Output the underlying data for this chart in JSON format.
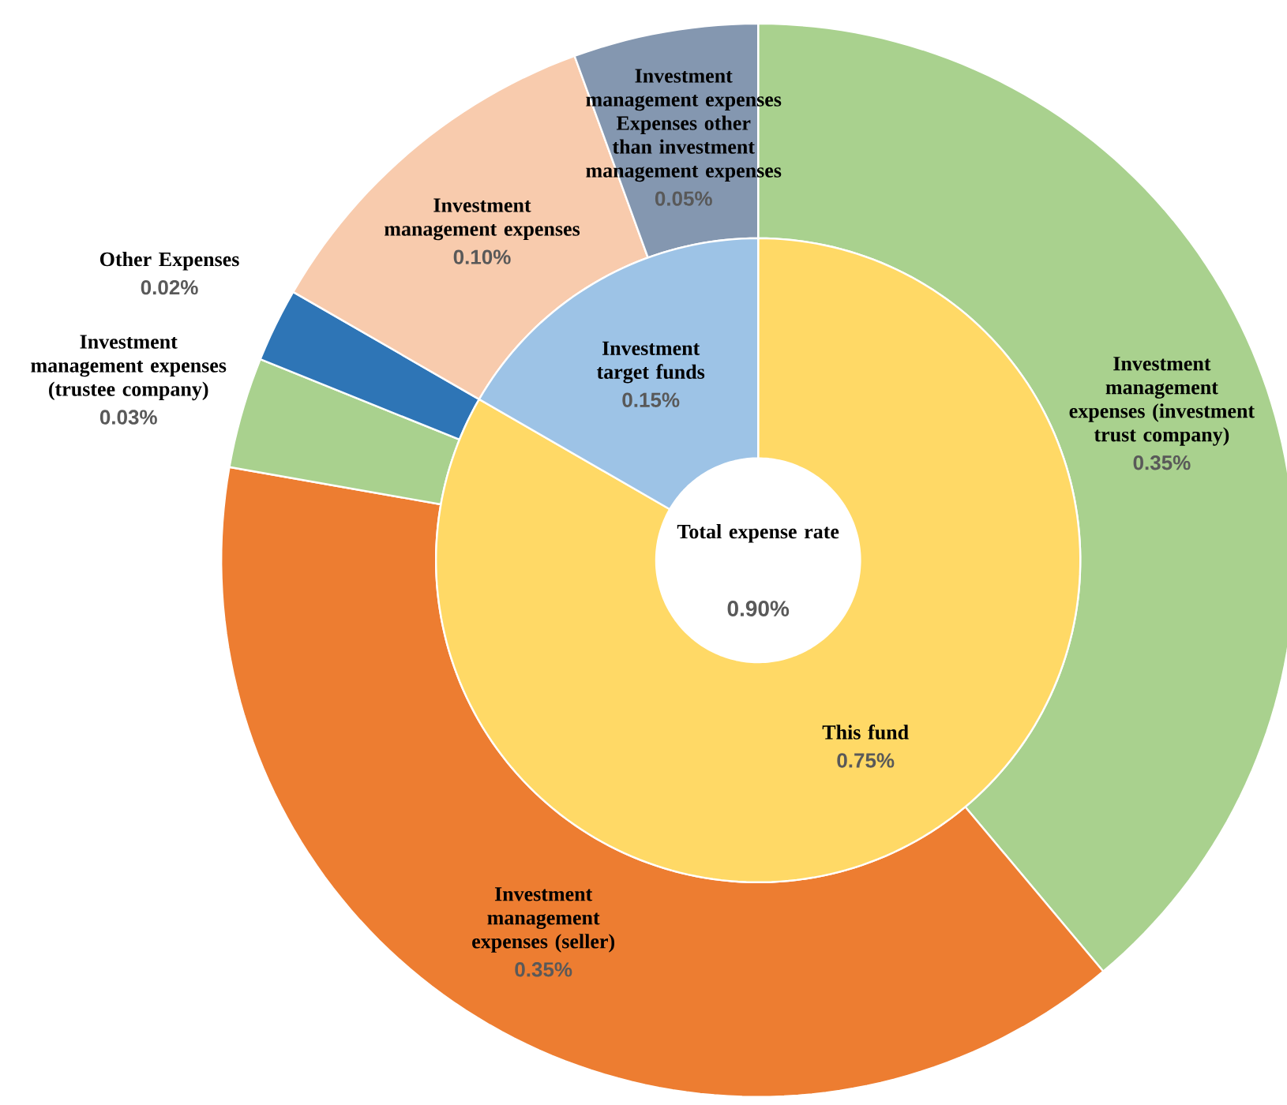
{
  "chart_data": [
    {
      "type": "donut",
      "title": "Total expense rate",
      "annotations": [
        "0.90%"
      ],
      "categories": [
        "This fund",
        "Investment target funds"
      ],
      "values": [
        0.75,
        0.15
      ],
      "colors": [
        "#ffd966",
        "#9dc3e6"
      ],
      "value_labels": [
        "0.75%",
        "0.15%"
      ]
    },
    {
      "type": "donut",
      "categories": [
        "Investment management expenses (investment trust company)",
        "Investment management expenses (seller)",
        "Investment management expenses (trustee company)",
        "Other Expenses",
        "Investment management expenses",
        "Investment management expenses Expenses other than investment management expenses"
      ],
      "values": [
        0.35,
        0.35,
        0.03,
        0.02,
        0.1,
        0.05
      ],
      "colors": [
        "#a9d18e",
        "#ed7d31",
        "#a9d18e",
        "#2e75b6",
        "#f8cbad",
        "#8497b0"
      ],
      "value_labels": [
        "0.35%",
        "0.35%",
        "0.03%",
        "0.02%",
        "0.10%",
        "0.05%"
      ]
    }
  ]
}
